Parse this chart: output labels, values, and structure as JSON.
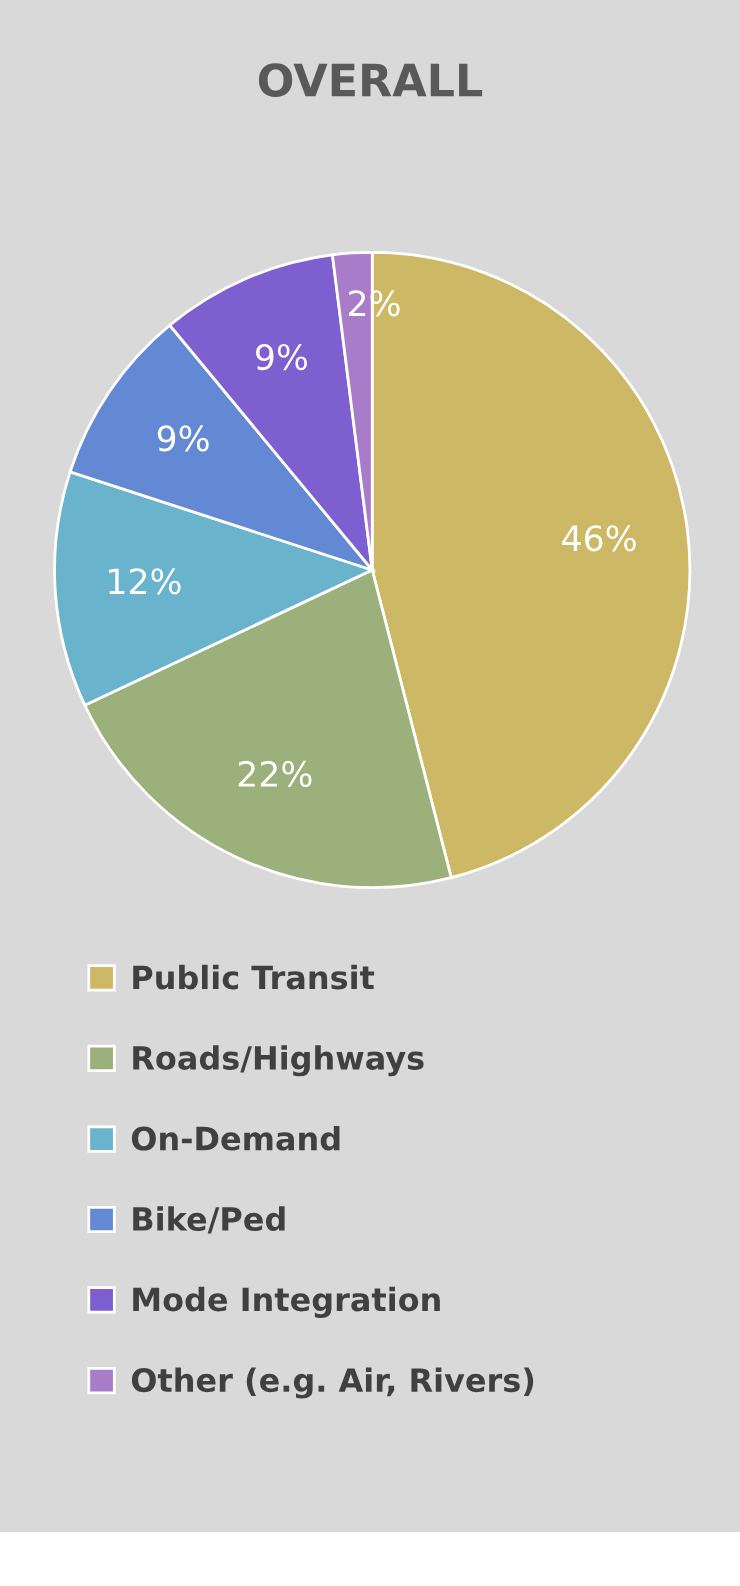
{
  "chart_data": {
    "type": "pie",
    "title": "OVERALL",
    "categories": [
      "Public Transit",
      "Roads/Highways",
      "On-Demand",
      "Bike/Ped",
      "Mode Integration",
      "Other (e.g. Air, Rivers)"
    ],
    "values": [
      46,
      22,
      12,
      9,
      9,
      2
    ],
    "colors": [
      "#cdb865",
      "#9bb07a",
      "#6ab3cc",
      "#6388d4",
      "#7e5fd0",
      "#a87cc8"
    ],
    "value_labels": [
      "46%",
      "22%",
      "12%",
      "9%",
      "9%",
      "2%"
    ],
    "legend": "bottom"
  }
}
